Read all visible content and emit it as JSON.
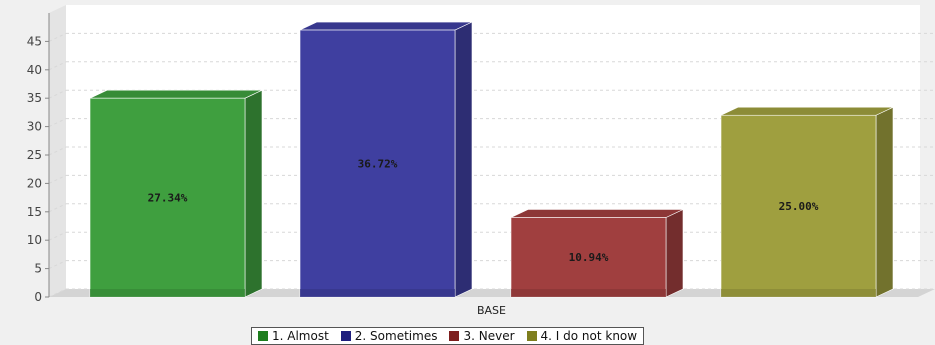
{
  "chart_data": {
    "type": "bar",
    "style": "3d",
    "categories": [
      "BASE"
    ],
    "series": [
      {
        "name": "1. Almost",
        "values": [
          35
        ],
        "label": "27.34%",
        "color": "#3f9f3f"
      },
      {
        "name": "2. Sometimes",
        "values": [
          47
        ],
        "label": "36.72%",
        "color": "#3f3fa0"
      },
      {
        "name": "3. Never",
        "values": [
          14
        ],
        "label": "10.94%",
        "color": "#a03f3f"
      },
      {
        "name": "4. I do not know",
        "values": [
          32
        ],
        "label": "25.00%",
        "color": "#9f9f3f"
      }
    ],
    "y_ticks": [
      "0",
      "5",
      "10",
      "15",
      "20",
      "25",
      "30",
      "35",
      "40",
      "45"
    ],
    "ylim": [
      0,
      50
    ],
    "grid": true,
    "legend_position": "bottom-center",
    "legend_colors": [
      "#1e7e1e",
      "#1e1e7e",
      "#7e1e1e",
      "#7e7e1e"
    ]
  }
}
